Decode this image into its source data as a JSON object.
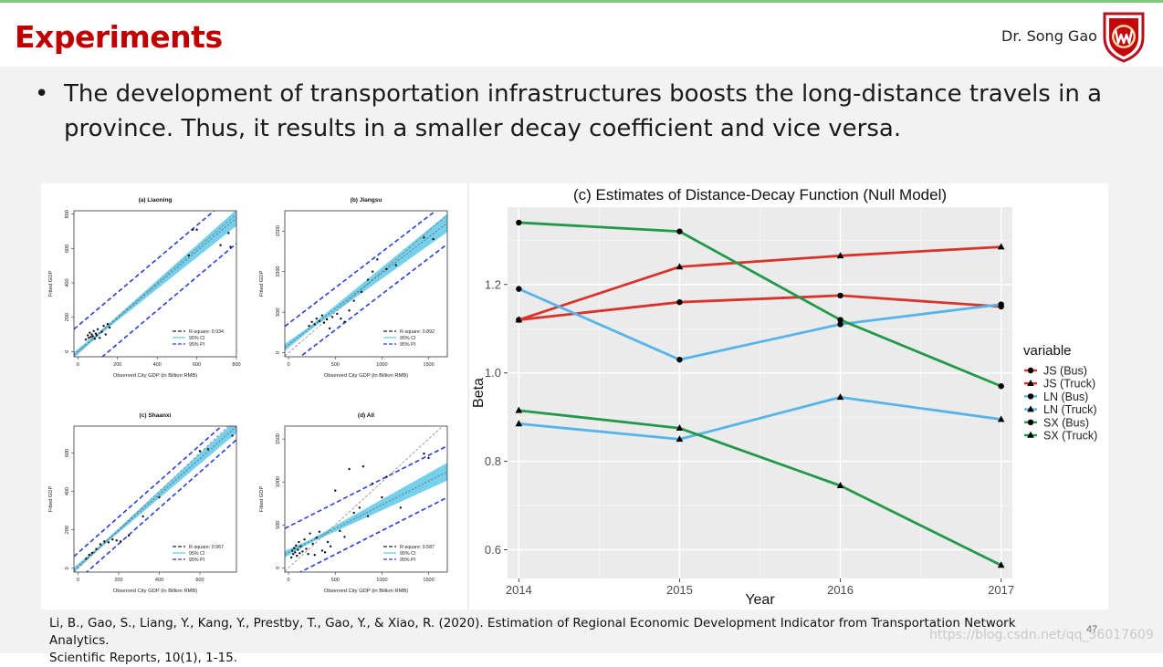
{
  "slide": {
    "title": "Experiments",
    "author": "Dr. Song Gao",
    "bullet": "The development of transportation infrastructures boosts the long-distance travels in a province. Thus, it results in a smaller decay coefficient and vice versa.",
    "citation_line1": "Li, B., Gao, S., Liang, Y., Kang, Y., Prestby, T., Gao, Y., & Xiao, R. (2020). Estimation of Regional Economic Development Indicator from Transportation Network Analytics.",
    "citation_line2": "Scientific Reports, 10(1), 1-15.",
    "page_number": "47",
    "watermark": "https://blog.csdn.net/qq_36017609"
  },
  "colors": {
    "title": "#c00000",
    "JS": "#d7342b",
    "LN": "#56b4e9",
    "SX": "#22994a",
    "panel_bg": "#ebebeb",
    "ci_band": "#5ec8e8",
    "pi_line": "#2a3fd6"
  },
  "chart_data": [
    {
      "type": "line",
      "title": "(c) Estimates of Distance-Decay Function (Null Model)",
      "xlabel": "Year",
      "ylabel": "Beta",
      "x": [
        2014,
        2015,
        2016,
        2017
      ],
      "xlim": [
        2013.93,
        2017.07
      ],
      "ylim": [
        0.535,
        1.375
      ],
      "yticks": [
        0.6,
        0.8,
        1.0,
        1.2
      ],
      "ytick_labels": [
        "0.6",
        "0.8",
        "1.0",
        "1.2"
      ],
      "legend_title": "variable",
      "legend_position": "right",
      "grid": true,
      "series": [
        {
          "name": "JS (Bus)",
          "marker": "circle",
          "color_key": "JS",
          "values": [
            1.12,
            1.16,
            1.175,
            1.15
          ]
        },
        {
          "name": "JS (Truck)",
          "marker": "triangle",
          "color_key": "JS",
          "values": [
            1.12,
            1.24,
            1.265,
            1.285
          ]
        },
        {
          "name": "LN (Bus)",
          "marker": "circle",
          "color_key": "LN",
          "values": [
            1.19,
            1.03,
            1.11,
            1.155
          ]
        },
        {
          "name": "LN (Truck)",
          "marker": "triangle",
          "color_key": "LN",
          "values": [
            0.885,
            0.85,
            0.945,
            0.895
          ]
        },
        {
          "name": "SX (Bus)",
          "marker": "circle",
          "color_key": "SX",
          "values": [
            1.34,
            1.32,
            1.12,
            0.97
          ]
        },
        {
          "name": "SX (Truck)",
          "marker": "triangle",
          "color_key": "SX",
          "values": [
            0.915,
            0.875,
            0.745,
            0.565
          ]
        }
      ]
    },
    {
      "type": "scatter",
      "title": "(a) Liaoning",
      "xlabel": "Observed City GDP (in Billion RMB)",
      "ylabel": "Fitted GDP",
      "xlim": [
        -20,
        800
      ],
      "ylim": [
        -30,
        820
      ],
      "xticks": [
        0,
        200,
        400,
        600,
        800
      ],
      "yticks": [
        0,
        200,
        400,
        600,
        800
      ],
      "legend": [
        "R-square: 0.934",
        "95% CI",
        "95% PI"
      ],
      "points": [
        [
          40,
          70
        ],
        [
          50,
          95
        ],
        [
          55,
          80
        ],
        [
          60,
          110
        ],
        [
          65,
          85
        ],
        [
          70,
          100
        ],
        [
          75,
          90
        ],
        [
          80,
          120
        ],
        [
          85,
          75
        ],
        [
          90,
          105
        ],
        [
          95,
          95
        ],
        [
          100,
          130
        ],
        [
          110,
          80
        ],
        [
          120,
          115
        ],
        [
          130,
          150
        ],
        [
          140,
          100
        ],
        [
          150,
          160
        ],
        [
          160,
          140
        ],
        [
          580,
          710
        ],
        [
          600,
          710
        ],
        [
          760,
          690
        ],
        [
          770,
          610
        ],
        [
          720,
          620
        ],
        [
          560,
          560
        ]
      ],
      "fit": [
        [
          0,
          0
        ],
        [
          780,
          760
        ]
      ],
      "ci_halfwidth": [
        10,
        55
      ],
      "pi_halfwidth": 150
    },
    {
      "type": "scatter",
      "title": "(b) Jiangsu",
      "xlabel": "Observed City GDP (in Billion RMB)",
      "ylabel": "Fitted GDP",
      "xlim": [
        -40,
        1700
      ],
      "ylim": [
        -50,
        1750
      ],
      "xticks": [
        0,
        500,
        1000,
        1500
      ],
      "yticks": [
        0,
        500,
        1000,
        1500
      ],
      "legend": [
        "R-square: 0.892",
        "95% CI",
        "95% PI"
      ],
      "points": [
        [
          220,
          330
        ],
        [
          250,
          380
        ],
        [
          280,
          350
        ],
        [
          300,
          420
        ],
        [
          330,
          390
        ],
        [
          360,
          460
        ],
        [
          380,
          370
        ],
        [
          410,
          410
        ],
        [
          440,
          300
        ],
        [
          470,
          440
        ],
        [
          520,
          480
        ],
        [
          560,
          420
        ],
        [
          600,
          380
        ],
        [
          650,
          520
        ],
        [
          700,
          640
        ],
        [
          780,
          750
        ],
        [
          850,
          900
        ],
        [
          900,
          1000
        ],
        [
          950,
          1150
        ],
        [
          1050,
          1030
        ],
        [
          1150,
          1080
        ],
        [
          1450,
          1420
        ],
        [
          1550,
          1400
        ]
      ],
      "fit": [
        [
          0,
          100
        ],
        [
          1700,
          1600
        ]
      ],
      "ci_halfwidth": [
        25,
        130
      ],
      "pi_halfwidth": 260
    },
    {
      "type": "scatter",
      "title": "(c) Shaanxi",
      "xlabel": "Observed City GDP (in Billion RMB)",
      "ylabel": "Fitted GDP",
      "xlim": [
        -20,
        780
      ],
      "ylim": [
        -20,
        740
      ],
      "xticks": [
        0,
        200,
        400,
        600
      ],
      "yticks": [
        0,
        200,
        400,
        600
      ],
      "legend": [
        "R-square: 0.967",
        "95% CI",
        "95% PI"
      ],
      "points": [
        [
          40,
          50
        ],
        [
          55,
          70
        ],
        [
          70,
          80
        ],
        [
          90,
          100
        ],
        [
          110,
          125
        ],
        [
          130,
          140
        ],
        [
          150,
          135
        ],
        [
          170,
          150
        ],
        [
          190,
          145
        ],
        [
          210,
          140
        ],
        [
          250,
          170
        ],
        [
          320,
          270
        ],
        [
          400,
          370
        ],
        [
          600,
          610
        ],
        [
          640,
          620
        ],
        [
          760,
          690
        ]
      ],
      "fit": [
        [
          0,
          10
        ],
        [
          760,
          720
        ]
      ],
      "ci_halfwidth": [
        8,
        40
      ],
      "pi_halfwidth": 70
    },
    {
      "type": "scatter",
      "title": "(d) All",
      "xlabel": "Observed City GDP (in Billion RMB)",
      "ylabel": "Fitted GDP",
      "xlim": [
        -40,
        1700
      ],
      "ylim": [
        -50,
        1650
      ],
      "xticks": [
        0,
        500,
        1000,
        1500
      ],
      "yticks": [
        0,
        500,
        1000,
        1500
      ],
      "legend": [
        "R-square: 0.587",
        "95% CI",
        "95% PI"
      ],
      "points": [
        [
          30,
          120
        ],
        [
          40,
          200
        ],
        [
          50,
          160
        ],
        [
          60,
          230
        ],
        [
          70,
          180
        ],
        [
          80,
          260
        ],
        [
          90,
          140
        ],
        [
          100,
          210
        ],
        [
          110,
          300
        ],
        [
          120,
          170
        ],
        [
          130,
          250
        ],
        [
          150,
          190
        ],
        [
          170,
          330
        ],
        [
          190,
          220
        ],
        [
          210,
          160
        ],
        [
          230,
          400
        ],
        [
          260,
          280
        ],
        [
          280,
          150
        ],
        [
          300,
          350
        ],
        [
          330,
          420
        ],
        [
          360,
          200
        ],
        [
          390,
          180
        ],
        [
          420,
          300
        ],
        [
          450,
          250
        ],
        [
          500,
          900
        ],
        [
          550,
          430
        ],
        [
          600,
          360
        ],
        [
          650,
          1150
        ],
        [
          700,
          640
        ],
        [
          760,
          700
        ],
        [
          800,
          1180
        ],
        [
          850,
          600
        ],
        [
          900,
          980
        ],
        [
          1000,
          820
        ],
        [
          1050,
          1060
        ],
        [
          1200,
          700
        ],
        [
          1450,
          1330
        ],
        [
          1500,
          1280
        ]
      ],
      "fit": [
        [
          0,
          180
        ],
        [
          1700,
          1120
        ]
      ],
      "ci_halfwidth": [
        20,
        120
      ],
      "pi_halfwidth": 300
    }
  ]
}
